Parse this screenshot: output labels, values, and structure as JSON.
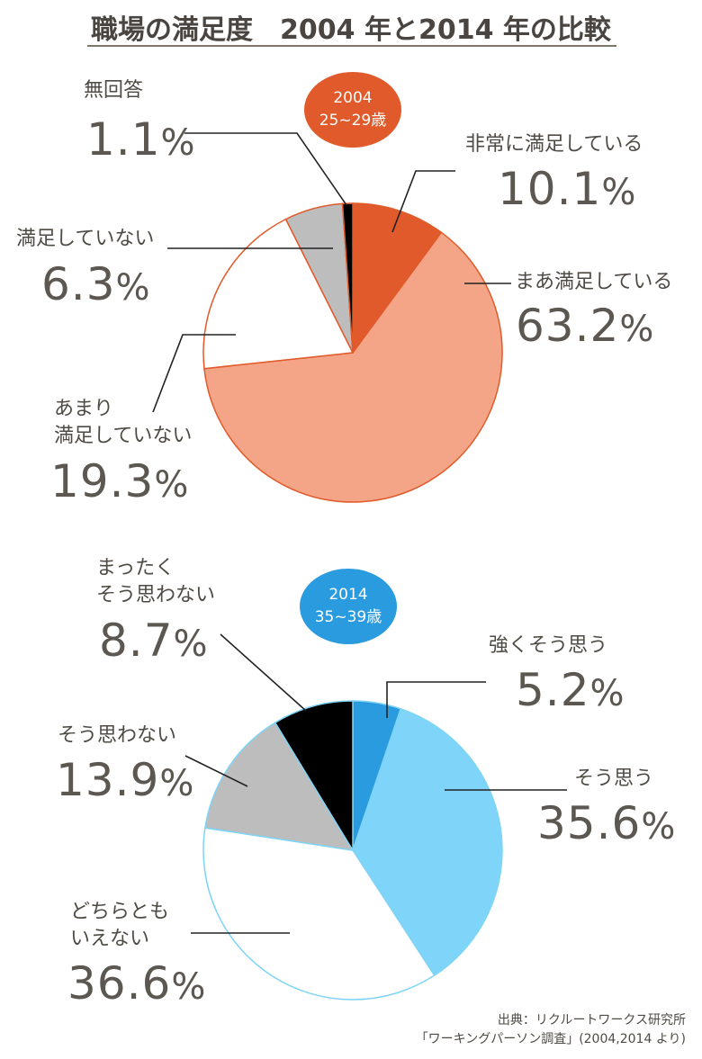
{
  "title": "職場の満足度　2004 年と2014 年の比較",
  "chart_data": [
    {
      "type": "pie",
      "badge": {
        "year": "2004",
        "age": "25~29歳",
        "color": "#e05a2b"
      },
      "accent": "#e05a2b",
      "slices": [
        {
          "label": "非常に満足している",
          "value": 10.1,
          "display": "10.1",
          "color": "#e05a2b"
        },
        {
          "label": "まあ満足している",
          "value": 63.2,
          "display": "63.2",
          "color": "#f4a587"
        },
        {
          "label": "あまり満足していない",
          "value": 19.3,
          "display": "19.3",
          "color": "#ffffff"
        },
        {
          "label": "満足していない",
          "value": 6.3,
          "display": "6.3",
          "color": "#bdbdbd"
        },
        {
          "label": "無回答",
          "value": 1.1,
          "display": "1.1",
          "color": "#000000"
        }
      ]
    },
    {
      "type": "pie",
      "badge": {
        "year": "2014",
        "age": "35~39歳",
        "color": "#2b9be0"
      },
      "accent": "#7fd4f5",
      "slices": [
        {
          "label": "強くそう思う",
          "value": 5.2,
          "display": "5.2",
          "color": "#2b9be0"
        },
        {
          "label": "そう思う",
          "value": 35.6,
          "display": "35.6",
          "color": "#7fd4f9"
        },
        {
          "label": "どちらともいえない",
          "value": 36.6,
          "display": "36.6",
          "color": "#ffffff"
        },
        {
          "label": "そう思わない",
          "value": 13.9,
          "display": "13.9",
          "color": "#bdbdbd"
        },
        {
          "label": "まったくそう思わない",
          "value": 8.7,
          "display": "8.7",
          "color": "#000000"
        }
      ]
    }
  ],
  "labels": {
    "c1": [
      "非常に満足している",
      "まあ満足している",
      "あまり",
      "満足していない",
      "満足していない",
      "無回答"
    ],
    "c2": [
      "強くそう思う",
      "そう思う",
      "どちらとも",
      "いえない",
      "そう思わない",
      "まったく",
      "そう思わない"
    ]
  },
  "label_texts": {
    "c1_s0": "非常に満足している",
    "c1_s1": "まあ満足している",
    "c1_s2_line1": "あまり",
    "c1_s2_line2": "満足していない",
    "c1_s3": "満足していない",
    "c1_s4": "無回答",
    "c2_s0": "強くそう思う",
    "c2_s1": "そう思う",
    "c2_s2_line1": "どちらとも",
    "c2_s2_line2": "いえない",
    "c2_s3": "そう思わない",
    "c2_s4_line1": "まったく",
    "c2_s4_line2": "そう思わない"
  },
  "percent_sign": "%",
  "source": {
    "line1": "出典：リクルートワークス研究所",
    "line2": "「ワーキングパーソン調査」(2004,2014 より)"
  }
}
